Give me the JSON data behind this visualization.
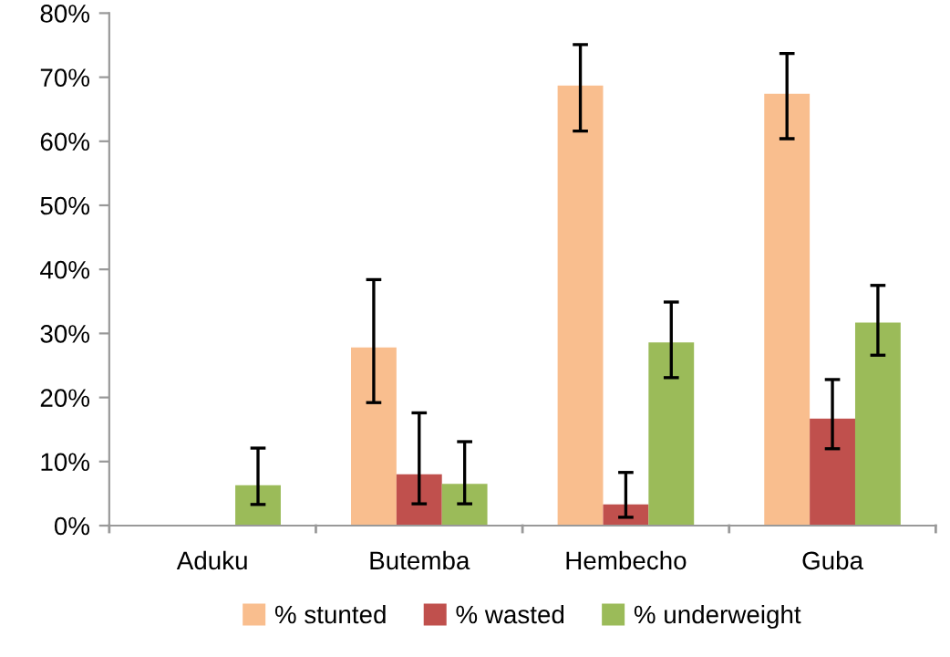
{
  "chart_data": {
    "type": "bar",
    "categories": [
      "Aduku",
      "Butemba",
      "Hembecho",
      "Guba"
    ],
    "series": [
      {
        "name": "% stunted",
        "color": "#f9be8e",
        "values": [
          0,
          27.8,
          68.7,
          67.4
        ],
        "errors": [
          null,
          [
            19.2,
            38.4
          ],
          [
            61.6,
            75.1
          ],
          [
            60.4,
            73.7
          ]
        ]
      },
      {
        "name": "% wasted",
        "color": "#c0504d",
        "values": [
          0,
          8.0,
          3.3,
          16.7
        ],
        "errors": [
          null,
          [
            3.4,
            17.6
          ],
          [
            1.3,
            8.3
          ],
          [
            12.0,
            22.8
          ]
        ]
      },
      {
        "name": "% underweight",
        "color": "#9bbb59",
        "values": [
          6.3,
          6.5,
          28.6,
          31.7
        ],
        "errors": [
          [
            3.3,
            12.1
          ],
          [
            3.4,
            13.1
          ],
          [
            23.1,
            34.9
          ],
          [
            26.6,
            37.5
          ]
        ]
      }
    ],
    "ylim": [
      0,
      80
    ],
    "yticks": [
      {
        "value": 0,
        "label": "0%"
      },
      {
        "value": 10,
        "label": "10%"
      },
      {
        "value": 20,
        "label": "20%"
      },
      {
        "value": 30,
        "label": "30%"
      },
      {
        "value": 40,
        "label": "40%"
      },
      {
        "value": 50,
        "label": "50%"
      },
      {
        "value": 60,
        "label": "60%"
      },
      {
        "value": 70,
        "label": "70%"
      },
      {
        "value": 80,
        "label": "80%"
      }
    ],
    "grid": false,
    "legend": "bottom"
  }
}
